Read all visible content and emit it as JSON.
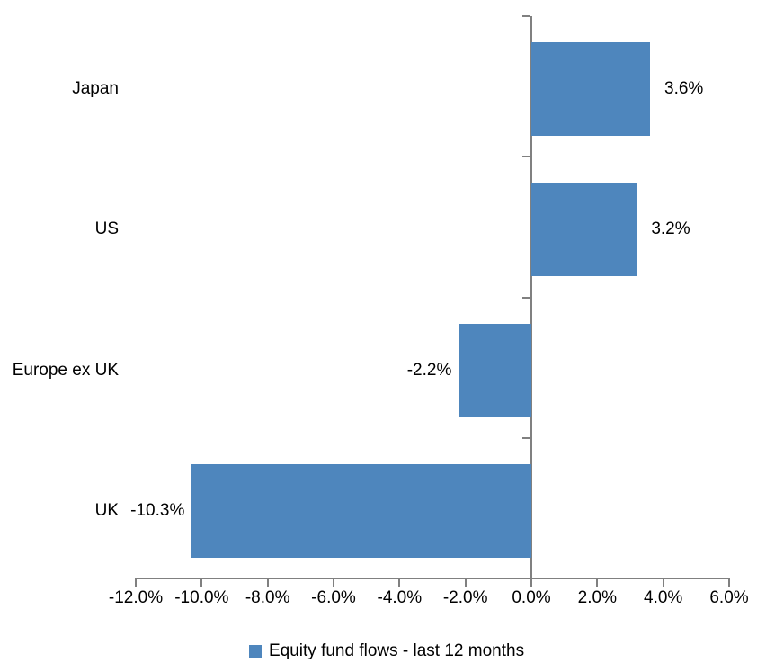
{
  "chart_data": {
    "type": "bar",
    "orientation": "horizontal",
    "title": "",
    "categories": [
      "Japan",
      "US",
      "Europe ex UK",
      "UK"
    ],
    "series": [
      {
        "name": "Equity fund flows - last 12 months",
        "values": [
          3.6,
          3.2,
          -2.2,
          -10.3
        ],
        "value_labels": [
          "3.6%",
          "3.2%",
          "-2.2%",
          "-10.3%"
        ]
      }
    ],
    "xlim": [
      -12,
      6
    ],
    "x_ticks": [
      -12,
      -10,
      -8,
      -6,
      -4,
      -2,
      0,
      2,
      4,
      6
    ],
    "x_tick_labels": [
      "-12.0%",
      "-10.0%",
      "-8.0%",
      "-6.0%",
      "-4.0%",
      "-2.0%",
      "0.0%",
      "2.0%",
      "4.0%",
      "6.0%"
    ],
    "grid": false,
    "legend_position": "bottom"
  },
  "colors": {
    "bar": "#4E86BD",
    "axis": "#808080",
    "text": "#000000",
    "background": "#FFFFFF"
  }
}
